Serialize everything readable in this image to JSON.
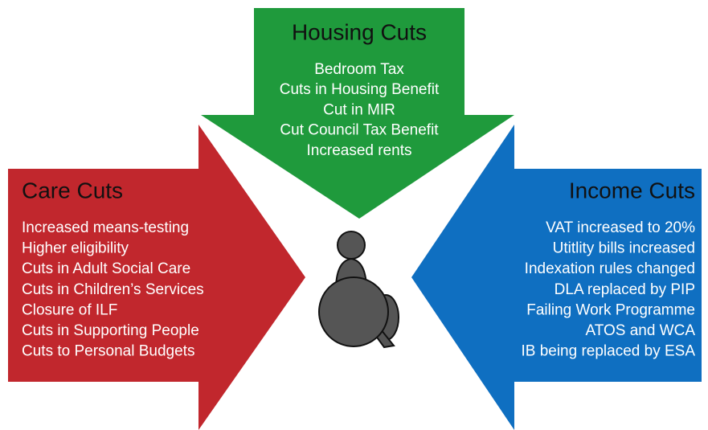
{
  "groups": [
    {
      "title": "Housing Cuts",
      "items": [
        "Bedroom Tax",
        "Cuts in Housing Benefit",
        "Cut in MIR",
        "Cut Council Tax Benefit",
        "Increased rents"
      ]
    },
    {
      "title": "Care Cuts",
      "items": [
        "Increased means-testing",
        "Higher eligibility",
        "Cuts in Adult Social Care",
        "Cuts in Children’s Services",
        "Closure of ILF",
        "Cuts in Supporting People",
        "Cuts to Personal Budgets"
      ]
    },
    {
      "title": "Income Cuts",
      "items": [
        "VAT increased to 20%",
        "Utitlity bills increased",
        "Indexation rules changed",
        "DLA replaced by PIP",
        "Failing Work Programme",
        "ATOS and WCA",
        "IB being replaced by ESA"
      ]
    }
  ]
}
